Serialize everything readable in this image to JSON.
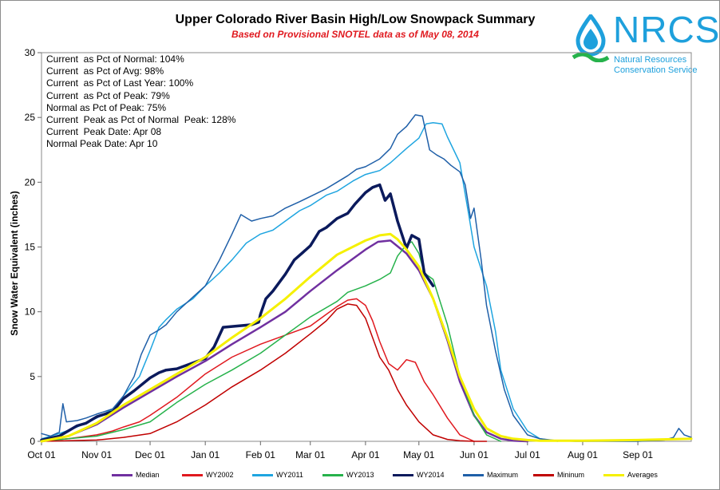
{
  "header": {
    "title": "Upper Colorado River Basin High/Low Snowpack Summary",
    "subtitle": "Based on Provisional SNOTEL data as of May 08, 2014"
  },
  "logo": {
    "text": "NRCS",
    "line1": "Natural Resources",
    "line2": "Conservation Service",
    "icon": "water-drop-icon"
  },
  "stats": [
    "Current  as Pct of Normal: 104%",
    "Current  as Pct of Avg: 98%",
    "Current  as Pct of Last Year: 100%",
    "Current  as Pct of Peak: 79%",
    "Normal as Pct of Peak: 75%",
    "Current  Peak as Pct of Normal  Peak: 128%",
    "Current  Peak Date: Apr 08",
    "Normal Peak Date: Apr 10"
  ],
  "chart_data": {
    "type": "line",
    "title": "Upper Colorado River Basin High/Low Snowpack Summary",
    "subtitle": "Based on Provisional SNOTEL data as of May 08, 2014",
    "xlabel": "",
    "ylabel": "Snow Water Equivalent (inches)",
    "ylim": [
      0,
      30
    ],
    "yticks": [
      0,
      5,
      10,
      15,
      20,
      25,
      30
    ],
    "xlim_days": [
      0,
      365
    ],
    "xtick_labels": [
      "Oct 01",
      "Nov 01",
      "Dec 01",
      "Jan 01",
      "Feb 01",
      "Mar 01",
      "Apr 01",
      "May 01",
      "Jun 01",
      "Jul 01",
      "Aug 01",
      "Sep 01"
    ],
    "xtick_days": [
      0,
      31,
      61,
      92,
      123,
      151,
      182,
      212,
      243,
      273,
      304,
      335
    ],
    "grid": false,
    "legend_position": "bottom",
    "series": [
      {
        "name": "Median",
        "color": "#7030a0",
        "width": 2.5,
        "x": [
          0,
          15,
          31,
          46,
          61,
          76,
          92,
          107,
          123,
          137,
          151,
          166,
          182,
          189,
          196,
          205,
          212,
          220,
          228,
          235,
          243,
          250,
          258,
          265,
          273
        ],
        "y": [
          0,
          0.4,
          1.3,
          2.6,
          3.8,
          5.0,
          6.2,
          7.5,
          8.8,
          10.0,
          11.6,
          13.2,
          14.8,
          15.4,
          15.5,
          14.5,
          13.2,
          11.0,
          7.8,
          4.6,
          2.0,
          0.7,
          0.2,
          0.05,
          0
        ]
      },
      {
        "name": "WY2002",
        "color": "#e0191f",
        "width": 1.5,
        "x": [
          0,
          15,
          31,
          40,
          46,
          55,
          61,
          76,
          92,
          107,
          123,
          137,
          151,
          160,
          166,
          172,
          177,
          182,
          186,
          190,
          195,
          200,
          205,
          210,
          215,
          220,
          228,
          235,
          243
        ],
        "y": [
          0,
          0.2,
          0.5,
          0.8,
          1.1,
          1.5,
          2.0,
          3.4,
          5.2,
          6.5,
          7.5,
          8.2,
          8.9,
          9.8,
          10.4,
          10.9,
          11.0,
          10.5,
          9.3,
          7.7,
          6.0,
          5.5,
          6.3,
          6.1,
          4.6,
          3.6,
          1.8,
          0.5,
          0
        ]
      },
      {
        "name": "WY2011",
        "color": "#1fa5e0",
        "width": 1.5,
        "x": [
          0,
          10,
          20,
          31,
          40,
          46,
          55,
          61,
          66,
          70,
          76,
          85,
          92,
          100,
          107,
          115,
          123,
          130,
          137,
          145,
          151,
          160,
          166,
          175,
          182,
          190,
          196,
          205,
          212,
          216,
          220,
          225,
          228,
          235,
          240,
          243,
          250,
          255,
          258,
          265,
          273,
          280,
          290
        ],
        "y": [
          0.2,
          0.6,
          1.1,
          1.8,
          2.5,
          3.5,
          5.0,
          7.0,
          8.8,
          9.4,
          10.2,
          11.0,
          12.0,
          13.0,
          14.0,
          15.3,
          16.0,
          16.3,
          17.0,
          17.8,
          18.2,
          19.0,
          19.3,
          20.1,
          20.6,
          20.9,
          21.5,
          22.6,
          23.4,
          24.5,
          24.6,
          24.5,
          23.5,
          21.5,
          17.5,
          15.0,
          12.0,
          8.5,
          5.5,
          2.5,
          0.8,
          0.2,
          0
        ]
      },
      {
        "name": "WY2013",
        "color": "#26b24b",
        "width": 1.5,
        "x": [
          0,
          15,
          31,
          46,
          61,
          76,
          92,
          107,
          123,
          137,
          151,
          166,
          172,
          182,
          190,
          196,
          200,
          205,
          208,
          212,
          215,
          220,
          228,
          235,
          243,
          250,
          258
        ],
        "y": [
          0,
          0.2,
          0.4,
          0.9,
          1.5,
          3.0,
          4.4,
          5.5,
          6.8,
          8.2,
          9.6,
          10.8,
          11.5,
          12.0,
          12.5,
          13.0,
          14.3,
          15.2,
          15.4,
          14.5,
          13.0,
          12.5,
          9.0,
          5.0,
          2.0,
          0.5,
          0
        ]
      },
      {
        "name": "WY2014",
        "color": "#0b1a5c",
        "width": 3.5,
        "x": [
          0,
          10,
          20,
          25,
          31,
          40,
          46,
          52,
          61,
          66,
          70,
          76,
          84,
          92,
          97,
          102,
          110,
          118,
          122,
          123,
          126,
          130,
          137,
          142,
          147,
          151,
          156,
          160,
          166,
          172,
          176,
          182,
          186,
          190,
          193,
          196,
          200,
          205,
          208,
          212,
          215,
          220
        ],
        "y": [
          0.1,
          0.4,
          1.2,
          1.4,
          1.9,
          2.3,
          3.3,
          3.9,
          4.9,
          5.3,
          5.5,
          5.6,
          6.0,
          6.4,
          7.3,
          8.8,
          8.9,
          9.0,
          9.2,
          9.8,
          11.0,
          11.6,
          12.9,
          14.0,
          14.6,
          15.1,
          16.2,
          16.5,
          17.2,
          17.6,
          18.3,
          19.2,
          19.6,
          19.8,
          18.6,
          19.1,
          17.0,
          14.9,
          15.9,
          15.6,
          13.0,
          12.0
        ]
      },
      {
        "name": "Maximum",
        "color": "#1f5fa8",
        "width": 1.5,
        "x": [
          0,
          5,
          10,
          12,
          14,
          20,
          25,
          31,
          40,
          46,
          52,
          56,
          61,
          66,
          70,
          76,
          84,
          92,
          100,
          107,
          112,
          118,
          123,
          130,
          137,
          145,
          151,
          160,
          166,
          172,
          177,
          182,
          190,
          196,
          200,
          205,
          210,
          214,
          218,
          222,
          226,
          230,
          235,
          238,
          241,
          243,
          247,
          250,
          255,
          260,
          265,
          273,
          280,
          290,
          300,
          335,
          350,
          355,
          358,
          361,
          365
        ],
        "y": [
          0.6,
          0.4,
          0.7,
          2.9,
          1.5,
          1.6,
          1.8,
          2.1,
          2.5,
          3.5,
          5.0,
          6.7,
          8.2,
          8.6,
          9.0,
          10.0,
          11.0,
          12.0,
          14.0,
          16.0,
          17.5,
          17.0,
          17.2,
          17.4,
          18.0,
          18.5,
          18.9,
          19.5,
          20.0,
          20.5,
          21.0,
          21.2,
          21.8,
          22.6,
          23.7,
          24.3,
          25.2,
          25.1,
          22.5,
          22.1,
          21.8,
          21.3,
          20.8,
          19.8,
          17.2,
          18.0,
          14.0,
          10.5,
          7.0,
          4.0,
          2.0,
          0.5,
          0.2,
          0.05,
          0,
          0,
          0.1,
          0.3,
          1.0,
          0.5,
          0.3
        ]
      },
      {
        "name": "Mininum",
        "color": "#c00000",
        "width": 1.5,
        "x": [
          0,
          31,
          46,
          61,
          76,
          92,
          107,
          123,
          137,
          151,
          160,
          166,
          172,
          177,
          182,
          186,
          190,
          195,
          200,
          205,
          212,
          220,
          228,
          235,
          243,
          250
        ],
        "y": [
          0,
          0.1,
          0.3,
          0.6,
          1.5,
          2.8,
          4.2,
          5.5,
          6.8,
          8.3,
          9.3,
          10.2,
          10.6,
          10.5,
          9.5,
          8.0,
          6.5,
          5.5,
          4.0,
          2.8,
          1.5,
          0.5,
          0.15,
          0.05,
          0,
          0
        ]
      },
      {
        "name": "Averages",
        "color": "#f5f000",
        "width": 3.0,
        "x": [
          0,
          15,
          31,
          46,
          61,
          76,
          92,
          107,
          123,
          137,
          151,
          166,
          182,
          190,
          196,
          200,
          205,
          212,
          220,
          228,
          235,
          243,
          250,
          258,
          265,
          273,
          280,
          290,
          304,
          335,
          365
        ],
        "y": [
          0,
          0.4,
          1.4,
          2.8,
          4.0,
          5.2,
          6.5,
          8.0,
          9.5,
          11.0,
          12.7,
          14.4,
          15.5,
          15.9,
          16.0,
          15.6,
          14.8,
          13.5,
          11.0,
          8.0,
          5.0,
          2.5,
          1.0,
          0.4,
          0.2,
          0.1,
          0.05,
          0.05,
          0.05,
          0.1,
          0.2
        ]
      }
    ]
  },
  "legend": {
    "items": [
      "Median",
      "WY2002",
      "WY2011",
      "WY2013",
      "WY2014",
      "Maximum",
      "Mininum",
      "Averages"
    ]
  }
}
